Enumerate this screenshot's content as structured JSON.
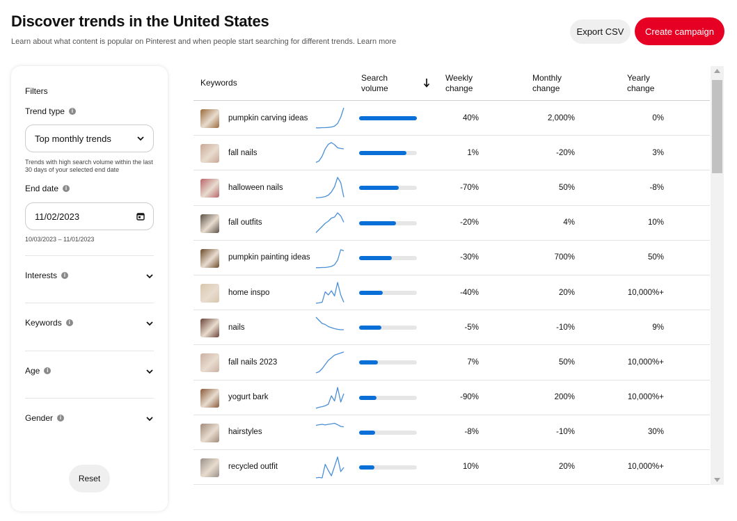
{
  "header": {
    "title": "Discover trends in the United States",
    "subtitle": "Learn about what content is popular on Pinterest and when people start searching for different trends. Learn more",
    "export_label": "Export CSV",
    "create_label": "Create campaign"
  },
  "colors": {
    "brand": "#e60023",
    "bar": "#0a70d8",
    "spark": "#4a8fd6"
  },
  "filters": {
    "title": "Filters",
    "trend_type_label": "Trend type",
    "trend_type_value": "Top monthly trends",
    "trend_type_hint": "Trends with high search volume within the last 30 days of your selected end date",
    "end_date_label": "End date",
    "end_date_value": "11/02/2023",
    "date_range": "10/03/2023 – 11/01/2023",
    "interests_label": "Interests",
    "keywords_label": "Keywords",
    "age_label": "Age",
    "gender_label": "Gender",
    "reset_label": "Reset"
  },
  "table": {
    "headers": {
      "keywords": "Keywords",
      "search_volume_1": "Search",
      "search_volume_2": "volume",
      "weekly_1": "Weekly",
      "weekly_2": "change",
      "monthly_1": "Monthly",
      "monthly_2": "change",
      "yearly_1": "Yearly",
      "yearly_2": "change"
    },
    "rows": [
      {
        "keyword": "pumpkin carving ideas",
        "volume": 1.0,
        "weekly": "40%",
        "monthly": "2,000%",
        "yearly": "0%",
        "thumb": "#9a6a3a",
        "spark": [
          0.04,
          0.04,
          0.05,
          0.05,
          0.06,
          0.08,
          0.12,
          0.25,
          0.55,
          1.0
        ]
      },
      {
        "keyword": "fall nails",
        "volume": 0.82,
        "weekly": "1%",
        "monthly": "-20%",
        "yearly": "3%",
        "thumb": "#c9a896",
        "spark": [
          0.05,
          0.12,
          0.35,
          0.7,
          0.92,
          1.0,
          0.9,
          0.75,
          0.72,
          0.7
        ]
      },
      {
        "keyword": "halloween nails",
        "volume": 0.69,
        "weekly": "-70%",
        "monthly": "50%",
        "yearly": "-8%",
        "thumb": "#b8656a",
        "spark": [
          0.02,
          0.03,
          0.05,
          0.08,
          0.15,
          0.3,
          0.55,
          1.0,
          0.75,
          0.05
        ]
      },
      {
        "keyword": "fall outfits",
        "volume": 0.64,
        "weekly": "-20%",
        "monthly": "4%",
        "yearly": "10%",
        "thumb": "#5a5245",
        "spark": [
          0.05,
          0.2,
          0.35,
          0.5,
          0.6,
          0.75,
          0.8,
          1.0,
          0.85,
          0.55
        ]
      },
      {
        "keyword": "pumpkin painting ideas",
        "volume": 0.57,
        "weekly": "-30%",
        "monthly": "700%",
        "yearly": "50%",
        "thumb": "#6b4a2a",
        "spark": [
          0.04,
          0.04,
          0.05,
          0.05,
          0.07,
          0.1,
          0.18,
          0.4,
          0.9,
          0.85
        ]
      },
      {
        "keyword": "home inspo",
        "volume": 0.41,
        "weekly": "-40%",
        "monthly": "20%",
        "yearly": "10,000%+",
        "thumb": "#d8c7ad",
        "spark": [
          0.0,
          0.02,
          0.05,
          0.55,
          0.4,
          0.6,
          0.35,
          1.0,
          0.4,
          0.05
        ]
      },
      {
        "keyword": "nails",
        "volume": 0.38,
        "weekly": "-5%",
        "monthly": "-10%",
        "yearly": "9%",
        "thumb": "#6b4438",
        "spark": [
          1.0,
          0.85,
          0.7,
          0.65,
          0.55,
          0.5,
          0.45,
          0.42,
          0.4,
          0.4
        ]
      },
      {
        "keyword": "fall nails 2023",
        "volume": 0.33,
        "weekly": "7%",
        "monthly": "50%",
        "yearly": "10,000%+",
        "thumb": "#cbb0a2",
        "spark": [
          0.0,
          0.05,
          0.2,
          0.4,
          0.6,
          0.72,
          0.85,
          0.9,
          0.95,
          1.0
        ]
      },
      {
        "keyword": "yogurt bark",
        "volume": 0.3,
        "weekly": "-90%",
        "monthly": "200%",
        "yearly": "10,000%+",
        "thumb": "#8a5a3a",
        "spark": [
          0.0,
          0.05,
          0.08,
          0.12,
          0.2,
          0.6,
          0.35,
          1.0,
          0.3,
          0.7
        ]
      },
      {
        "keyword": "hairstyles",
        "volume": 0.28,
        "weekly": "-8%",
        "monthly": "-10%",
        "yearly": "30%",
        "thumb": "#a08a7a",
        "spark": [
          0.85,
          0.88,
          0.9,
          0.87,
          0.9,
          0.92,
          0.95,
          0.88,
          0.8,
          0.78
        ]
      },
      {
        "keyword": "recycled outfit",
        "volume": 0.27,
        "weekly": "10%",
        "monthly": "20%",
        "yearly": "10,000%+",
        "thumb": "#9a9088",
        "spark": [
          0.0,
          0.02,
          0.0,
          0.65,
          0.35,
          0.1,
          0.55,
          1.0,
          0.3,
          0.5
        ]
      }
    ]
  }
}
